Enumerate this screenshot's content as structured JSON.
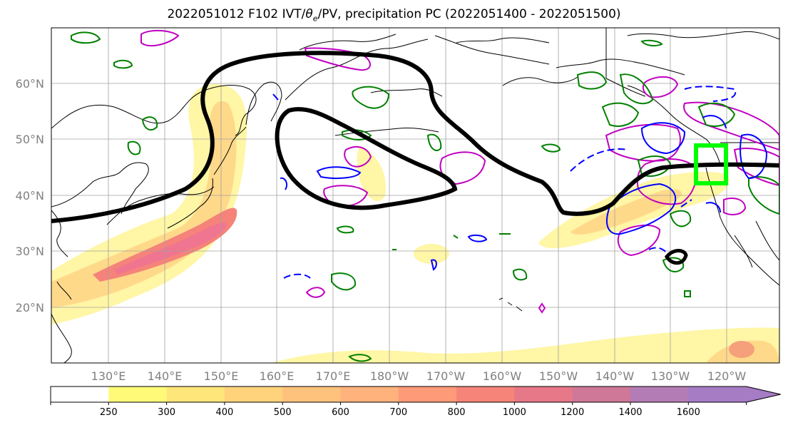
{
  "title": {
    "prefix": "2022051012 F102 IVT/",
    "theta": "θ",
    "theta_sub": "e",
    "suffix": "/PV, precipitation PC (2022051400 - 2022051500)"
  },
  "lat_labels": [
    "60°N",
    "50°N",
    "40°N",
    "30°N",
    "20°N"
  ],
  "lon_labels": [
    "130°E",
    "140°E",
    "150°E",
    "160°E",
    "170°E",
    "180°W",
    "170°W",
    "160°W",
    "150°W",
    "140°W",
    "130°W",
    "120°W"
  ],
  "colorbar": {
    "ticks": [
      "250",
      "300",
      "400",
      "500",
      "600",
      "700",
      "800",
      "1000",
      "1200",
      "1400",
      "1600"
    ],
    "colors": [
      "#ffffff",
      "#fffb78",
      "#ffe67a",
      "#ffd27c",
      "#ffc27c",
      "#ffb27c",
      "#ff9a78",
      "#f78478",
      "#e77888",
      "#cf7898",
      "#b47cb4",
      "#a67cc4"
    ]
  },
  "colors": {
    "ivt_fill_light": "#fff5a0",
    "ivt_fill_mid": "#ffc88a",
    "ivt_fill_core": "#f5837a",
    "theta_contour": "#000000",
    "pv_positive": "#008000",
    "pv_negative": "#0000ff",
    "precip_pc": "#c000c0",
    "target_box": "#00ff00"
  }
}
